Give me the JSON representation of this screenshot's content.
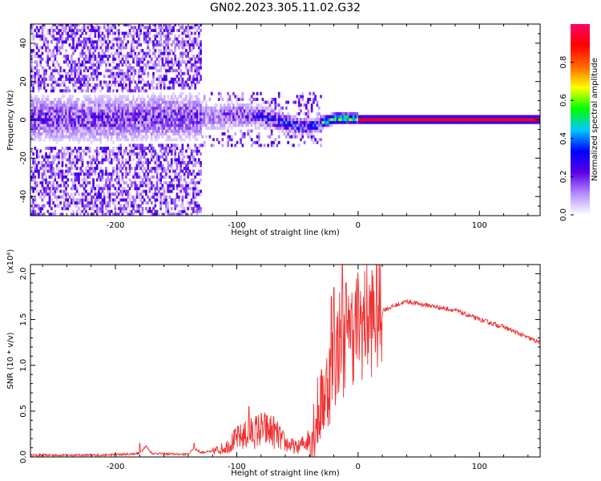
{
  "title": "GN02.2023.305.11.02.G32",
  "chart_data": [
    {
      "type": "heatmap",
      "xlabel": "Height of straight line (km)",
      "ylabel": "Frequency (Hz)",
      "xlim": [
        -270,
        150
      ],
      "ylim": [
        -50,
        50
      ],
      "x_ticks": [
        -200,
        -100,
        0,
        100
      ],
      "y_ticks": [
        -40,
        -20,
        0,
        20,
        40
      ],
      "grid": false,
      "ridge": {
        "x": [
          -250,
          -200,
          -150,
          -120,
          -100,
          -80,
          -60,
          -50,
          -40,
          -30,
          -20,
          -10,
          0,
          50,
          100,
          150
        ],
        "y": [
          0,
          0,
          1,
          1,
          2,
          1,
          -2,
          -4,
          -4,
          -2,
          0,
          0,
          0,
          0,
          0,
          0
        ]
      },
      "colorbar": {
        "label": "Normalized spectral amplitude",
        "range": [
          0,
          1
        ],
        "ticks": [
          "0.0",
          "0.2",
          "0.4",
          "0.6",
          "0.8"
        ],
        "colors": [
          "#ffffff",
          "#b58cff",
          "#5a00e6",
          "#0000ff",
          "#00c8ff",
          "#00ff00",
          "#ffff00",
          "#ff6600",
          "#ff0000",
          "#ff0066"
        ]
      }
    },
    {
      "type": "line",
      "xlabel": "Height of straight line (km)",
      "ylabel": "SNR (10 * v/v)",
      "y_multiplier": "(x10⁴)",
      "xlim": [
        -270,
        150
      ],
      "ylim": [
        0,
        2.1
      ],
      "x_ticks": [
        -200,
        -100,
        0,
        100
      ],
      "y_ticks": [
        "0.0",
        "0.5",
        "1.0",
        "1.5",
        "2.0"
      ],
      "grid": false,
      "series": [
        {
          "color": "#f03232",
          "x": [
            -270,
            -250,
            -230,
            -210,
            -190,
            -180,
            -175,
            -170,
            -150,
            -140,
            -135,
            -130,
            -120,
            -110,
            -100,
            -90,
            -80,
            -70,
            -60,
            -50,
            -40,
            -35,
            -30,
            -25,
            -20,
            -15,
            -10,
            -5,
            0,
            10,
            20,
            30,
            40,
            50,
            60,
            80,
            100,
            120,
            140,
            150
          ],
          "y": [
            0.02,
            0.02,
            0.02,
            0.02,
            0.03,
            0.04,
            0.12,
            0.04,
            0.03,
            0.03,
            0.1,
            0.05,
            0.06,
            0.1,
            0.2,
            0.25,
            0.3,
            0.28,
            0.15,
            0.1,
            0.2,
            0.4,
            0.6,
            0.8,
            1.0,
            1.3,
            1.1,
            1.4,
            1.45,
            1.5,
            1.6,
            1.65,
            1.7,
            1.67,
            1.65,
            1.6,
            1.5,
            1.42,
            1.3,
            1.25
          ],
          "peaks": {
            "x": [
              -180,
              -135,
              -90,
              -30,
              -22,
              -20,
              -13,
              -10,
              -7,
              -3
            ],
            "y": [
              0.15,
              0.15,
              0.55,
              0.95,
              1.75,
              1.85,
              2.1,
              1.9,
              1.6,
              1.55
            ]
          }
        }
      ]
    }
  ]
}
